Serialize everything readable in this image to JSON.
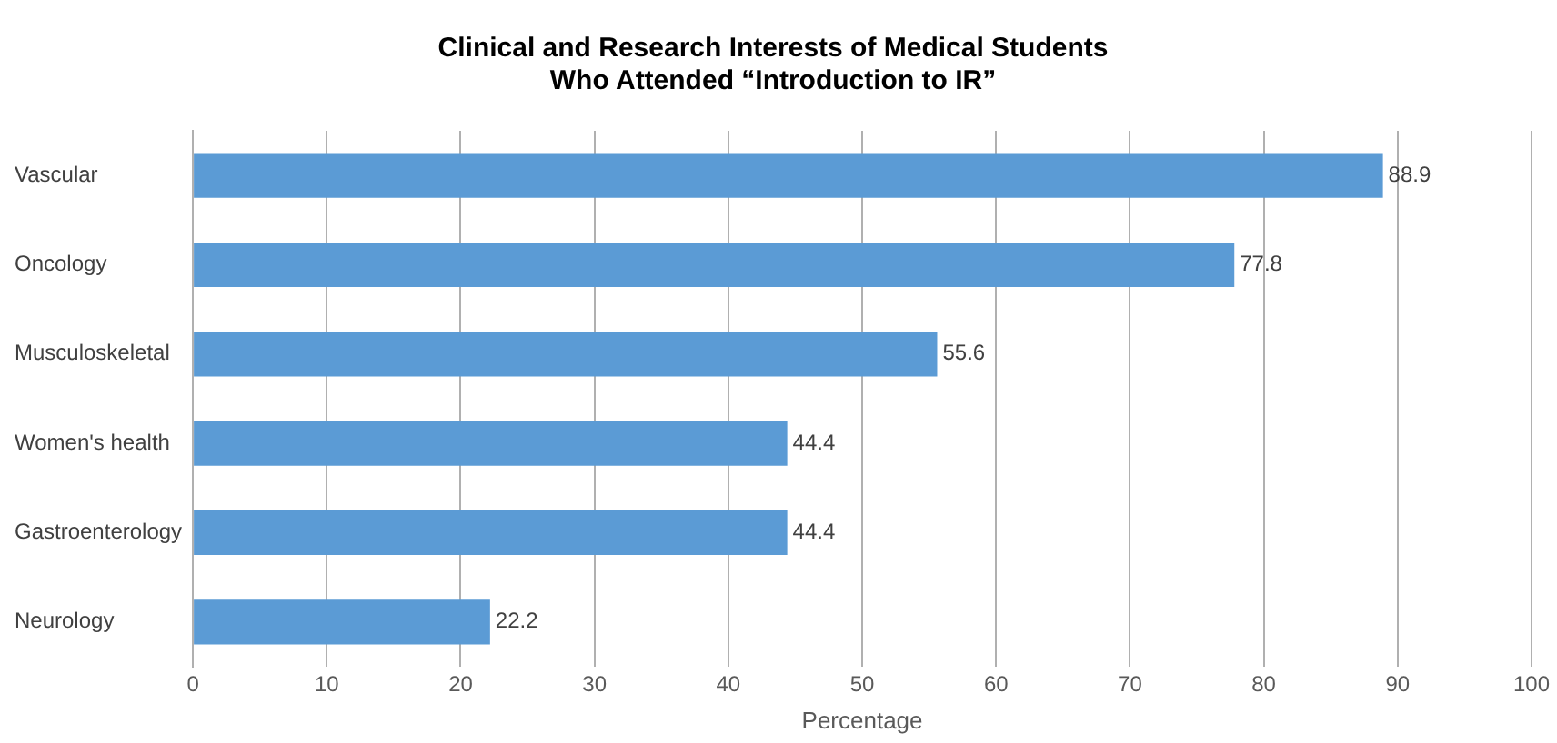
{
  "chart_data": {
    "type": "bar",
    "orientation": "horizontal",
    "title": "Clinical and Research Interests of Medical Students\nWho Attended “Introduction to IR”",
    "xlabel": "Percentage",
    "categories": [
      "Vascular",
      "Oncology",
      "Musculoskeletal",
      "Women's health",
      "Gastroenterology",
      "Neurology"
    ],
    "values": [
      88.9,
      77.8,
      55.6,
      44.4,
      44.4,
      22.2
    ],
    "color": "#5b9bd5",
    "xlim": [
      0,
      100
    ],
    "xticks": [
      0,
      10,
      20,
      30,
      40,
      50,
      60,
      70,
      80,
      90,
      100
    ],
    "grid": "x",
    "data_labels": true,
    "legend": false
  }
}
